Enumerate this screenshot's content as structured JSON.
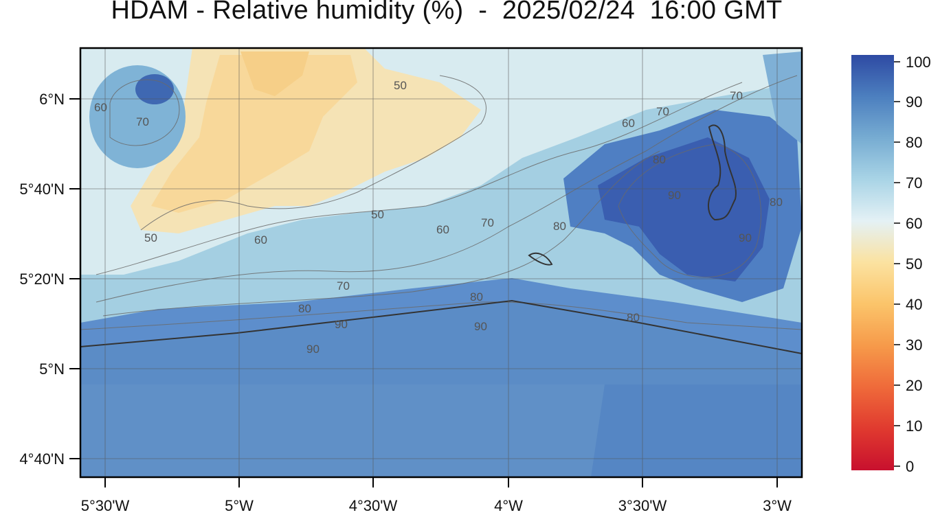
{
  "title": "HDAM - Relative humidity (%)  -  2025/02/24  16:00 GMT",
  "map": {
    "lat_ticks": [
      "6°N",
      "5°40'N",
      "5°20'N",
      "5°N",
      "4°40'N"
    ],
    "lon_ticks": [
      "5°30'W",
      "5°W",
      "4°30'W",
      "4°W",
      "3°30'W",
      "3°W"
    ],
    "contour_labels": [
      "50",
      "50",
      "50",
      "60",
      "60",
      "60",
      "60",
      "70",
      "70",
      "70",
      "70",
      "70",
      "80",
      "80",
      "80",
      "80",
      "80",
      "80",
      "90",
      "90",
      "90",
      "90",
      "90"
    ]
  },
  "colorbar": {
    "ticks": [
      "100",
      "90",
      "80",
      "70",
      "60",
      "50",
      "40",
      "30",
      "20",
      "10",
      "0"
    ],
    "colors": [
      "#c8102e",
      "#e03a2f",
      "#ef6a3a",
      "#f69a4a",
      "#fbc46a",
      "#fbe2a0",
      "#e4f1f5",
      "#a9d4e6",
      "#77acd2",
      "#4c7fbf",
      "#2e4aa3"
    ]
  }
}
